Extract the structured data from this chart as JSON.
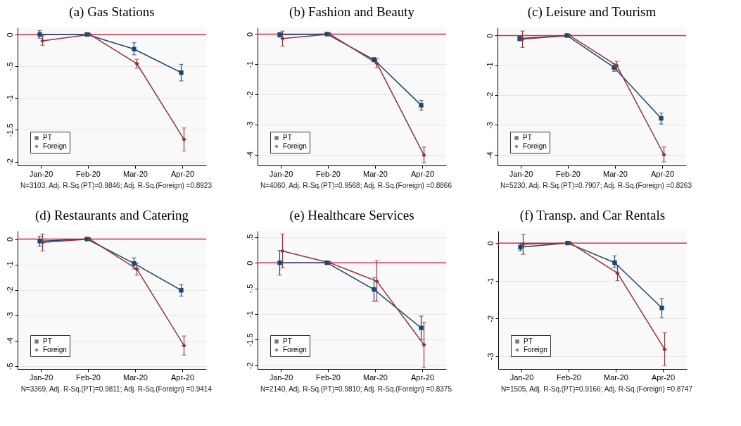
{
  "chart_data": [
    {
      "type": "line",
      "title": "(a) Gas Stations",
      "categories": [
        "Jan-20",
        "Feb-20",
        "Mar-20",
        "Apr-20"
      ],
      "ylim": [
        -2.06,
        0.11
      ],
      "yticks": [
        0,
        {
          "value": -0.5,
          "label": "-.5"
        },
        -1,
        {
          "value": -1.5,
          "label": "-1.5"
        },
        -2
      ],
      "grid": "y",
      "legend": "bottom left",
      "annotations": [
        "N=3103, Adj. R-Sq.(PT)=0.9846; Adj. R-Sq.(Foreign) =0.8923"
      ],
      "ref_lines": [
        {
          "axis": "y",
          "value": 0,
          "color": "#d0324f"
        }
      ],
      "series": [
        {
          "name": "PT",
          "color": "#1a476f",
          "marker": "square",
          "values": [
            0,
            0,
            -0.23,
            -0.6
          ],
          "errors": [
            [
              -0.06,
              0.06
            ],
            null,
            [
              -0.32,
              -0.13
            ],
            [
              -0.73,
              -0.47
            ]
          ]
        },
        {
          "name": "Foreign",
          "color": "#90353b",
          "marker": "diamond",
          "values": [
            -0.1,
            0,
            -0.46,
            -1.65
          ],
          "errors": [
            [
              -0.17,
              -0.02
            ],
            null,
            [
              -0.53,
              -0.39
            ],
            [
              -1.83,
              -1.47
            ]
          ]
        }
      ]
    },
    {
      "type": "line",
      "title": "(b) Fashion and Beauty",
      "categories": [
        "Jan-20",
        "Feb-20",
        "Mar-20",
        "Apr-20"
      ],
      "ylim": [
        -4.36,
        0.22
      ],
      "yticks": [
        0,
        -1,
        -2,
        -3,
        -4
      ],
      "grid": "y",
      "legend": "bottom left",
      "annotations": [
        "N=4060, Adj. R-Sq.(PT)=0.9568; Adj. R-Sq.(Foreign) =0.8866"
      ],
      "ref_lines": [
        {
          "axis": "y",
          "value": 0,
          "color": "#d0324f"
        }
      ],
      "series": [
        {
          "name": "PT",
          "color": "#1a476f",
          "marker": "square",
          "values": [
            -0.02,
            0,
            -0.85,
            -2.36
          ],
          "errors": [
            [
              -0.1,
              0.05
            ],
            null,
            [
              -0.92,
              -0.78
            ],
            [
              -2.52,
              -2.2
            ]
          ]
        },
        {
          "name": "Foreign",
          "color": "#90353b",
          "marker": "diamond",
          "values": [
            -0.15,
            0,
            -0.97,
            -4.02
          ],
          "errors": [
            [
              -0.4,
              0.1
            ],
            null,
            [
              -1.12,
              -0.82
            ],
            [
              -4.27,
              -3.75
            ]
          ]
        }
      ]
    },
    {
      "type": "line",
      "title": "(c) Leisure and Tourism",
      "categories": [
        "Jan-20",
        "Feb-20",
        "Mar-20",
        "Apr-20"
      ],
      "ylim": [
        -4.36,
        0.27
      ],
      "yticks": [
        0,
        -1,
        -2,
        -3,
        -4
      ],
      "grid": "y",
      "legend": "bottom left",
      "annotations": [
        "N=5230, Adj. R-Sq.(PT)=0.7907; Adj. R-Sq.(Foreign) =0.8263"
      ],
      "ref_lines": [
        {
          "axis": "y",
          "value": 0,
          "color": "#d0324f"
        }
      ],
      "series": [
        {
          "name": "PT",
          "color": "#1a476f",
          "marker": "square",
          "values": [
            -0.1,
            0,
            -1.07,
            -2.78
          ],
          "errors": [
            [
              -0.18,
              -0.02
            ],
            null,
            [
              -1.2,
              -0.95
            ],
            [
              -2.97,
              -2.6
            ]
          ]
        },
        {
          "name": "Foreign",
          "color": "#90353b",
          "marker": "diamond",
          "values": [
            -0.12,
            0,
            -1.01,
            -4.0
          ],
          "errors": [
            [
              -0.4,
              0.15
            ],
            null,
            [
              -1.16,
              -0.87
            ],
            [
              -4.24,
              -3.74
            ]
          ]
        }
      ]
    },
    {
      "type": "line",
      "title": "(d) Restaurants and Catering",
      "categories": [
        "Jan-20",
        "Feb-20",
        "Mar-20",
        "Apr-20"
      ],
      "ylim": [
        -5.12,
        0.32
      ],
      "yticks": [
        0,
        -1,
        -2,
        -3,
        -4,
        -5
      ],
      "grid": "y",
      "legend": "bottom left",
      "annotations": [
        "N=3369, Adj. R-Sq.(PT)=0.9811; Adj. R-Sq.(Foreign) =0.9414"
      ],
      "ref_lines": [
        {
          "axis": "y",
          "value": 0,
          "color": "#d0324f"
        }
      ],
      "series": [
        {
          "name": "PT",
          "color": "#1a476f",
          "marker": "square",
          "values": [
            -0.08,
            0,
            -0.96,
            -2.02
          ],
          "errors": [
            [
              -0.28,
              0.11
            ],
            null,
            [
              -1.18,
              -0.74
            ],
            [
              -2.25,
              -1.8
            ]
          ]
        },
        {
          "name": "Foreign",
          "color": "#90353b",
          "marker": "diamond",
          "values": [
            -0.13,
            0,
            -1.18,
            -4.2
          ],
          "errors": [
            [
              -0.47,
              0.2
            ],
            null,
            [
              -1.42,
              -0.95
            ],
            [
              -4.57,
              -3.82
            ]
          ]
        }
      ]
    },
    {
      "type": "line",
      "title": "(e) Healthcare Services",
      "categories": [
        "Jan-20",
        "Feb-20",
        "Mar-20",
        "Apr-20"
      ],
      "ylim": [
        -2.07,
        0.62
      ],
      "yticks": [
        {
          "value": 0.5,
          "label": ".5"
        },
        0,
        {
          "value": -0.5,
          "label": "-.5"
        },
        -1,
        {
          "value": -1.5,
          "label": "-1.5"
        },
        -2
      ],
      "grid": "y",
      "legend": "bottom left",
      "annotations": [
        "N=2140, Adj. R-Sq.(PT)=0.9810; Adj. R-Sq.(Foreign) =0.8375"
      ],
      "ref_lines": [
        {
          "axis": "y",
          "value": 0,
          "color": "#d0324f"
        }
      ],
      "series": [
        {
          "name": "PT",
          "color": "#1a476f",
          "marker": "square",
          "values": [
            0,
            0,
            -0.52,
            -1.27
          ],
          "errors": [
            [
              -0.24,
              0.24
            ],
            null,
            [
              -0.75,
              -0.29
            ],
            [
              -1.5,
              -1.04
            ]
          ]
        },
        {
          "name": "Foreign",
          "color": "#90353b",
          "marker": "diamond",
          "values": [
            0.23,
            0,
            -0.36,
            -1.6
          ],
          "errors": [
            [
              -0.1,
              0.56
            ],
            null,
            [
              -0.75,
              0.04
            ],
            [
              -2.04,
              -1.16
            ]
          ]
        }
      ]
    },
    {
      "type": "line",
      "title": "(f) Transp. and Car Rentals",
      "categories": [
        "Jan-20",
        "Feb-20",
        "Mar-20",
        "Apr-20"
      ],
      "ylim": [
        -3.34,
        0.32
      ],
      "yticks": [
        0,
        -1,
        -2,
        -3
      ],
      "grid": "y",
      "legend": "bottom left",
      "annotations": [
        "N=1505, Adj. R-Sq.(PT)=0.9166; Adj. R-Sq.(Foreign) =0.8747"
      ],
      "ref_lines": [
        {
          "axis": "y",
          "value": 0,
          "color": "#d0324f"
        }
      ],
      "series": [
        {
          "name": "PT",
          "color": "#1a476f",
          "marker": "square",
          "values": [
            -0.11,
            0,
            -0.52,
            -1.72
          ],
          "errors": [
            [
              -0.2,
              -0.02
            ],
            null,
            [
              -0.65,
              -0.34
            ],
            [
              -1.98,
              -1.47
            ]
          ]
        },
        {
          "name": "Foreign",
          "color": "#90353b",
          "marker": "diamond",
          "values": [
            -0.03,
            0,
            -0.8,
            -2.82
          ],
          "errors": [
            [
              -0.3,
              0.23
            ],
            null,
            [
              -1.0,
              -0.6
            ],
            [
              -3.25,
              -2.38
            ]
          ]
        }
      ]
    }
  ]
}
